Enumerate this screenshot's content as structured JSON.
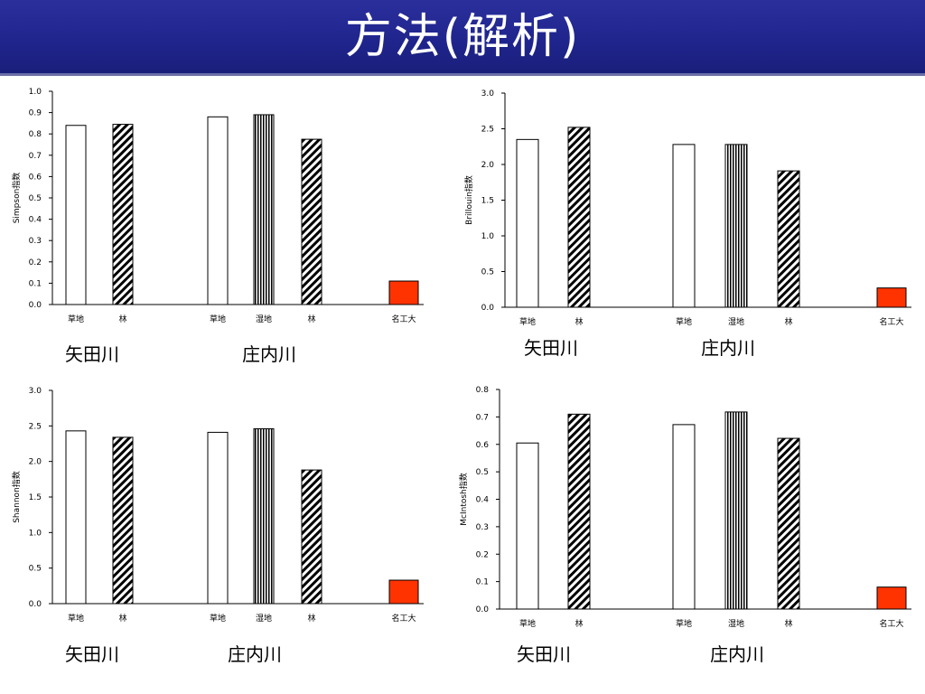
{
  "header": {
    "title": "方法(解析)"
  },
  "colors": {
    "title_bar": "#1f248c",
    "highlight_bar": "#ff3300",
    "bar_outline": "#000000"
  },
  "chart_data": [
    {
      "type": "bar",
      "ylabel": "Simpson指数",
      "ylim": [
        0,
        1.0
      ],
      "yticks": [
        "0.0",
        "0.1",
        "0.2",
        "0.3",
        "0.4",
        "0.5",
        "0.6",
        "0.7",
        "0.8",
        "0.9",
        "1.0"
      ],
      "categories": [
        "草地",
        "林",
        "草地",
        "湿地",
        "林",
        "名工大"
      ],
      "values": [
        0.84,
        0.845,
        0.88,
        0.89,
        0.775,
        0.11
      ],
      "patterns": [
        "plain",
        "hatch",
        "plain",
        "vertical",
        "hatch",
        "red"
      ],
      "group_labels": [
        "矢田川",
        "庄内川"
      ]
    },
    {
      "type": "bar",
      "ylabel": "Brillouin指数",
      "ylim": [
        0,
        3.0
      ],
      "yticks": [
        "0.0",
        "0.5",
        "1.0",
        "1.5",
        "2.0",
        "2.5",
        "3.0"
      ],
      "categories": [
        "草地",
        "林",
        "草地",
        "湿地",
        "林",
        "名工大"
      ],
      "values": [
        2.35,
        2.52,
        2.28,
        2.28,
        1.91,
        0.27
      ],
      "patterns": [
        "plain",
        "hatch",
        "plain",
        "vertical",
        "hatch",
        "red"
      ],
      "group_labels": [
        "矢田川",
        "庄内川"
      ]
    },
    {
      "type": "bar",
      "ylabel": "Shannon指数",
      "ylim": [
        0,
        3.0
      ],
      "yticks": [
        "0.0",
        "0.5",
        "1.0",
        "1.5",
        "2.0",
        "2.5",
        "3.0"
      ],
      "categories": [
        "草地",
        "林",
        "草地",
        "湿地",
        "林",
        "名工大"
      ],
      "values": [
        2.43,
        2.34,
        2.41,
        2.46,
        1.88,
        0.33
      ],
      "patterns": [
        "plain",
        "hatch",
        "plain",
        "vertical",
        "hatch",
        "red"
      ],
      "group_labels": [
        "矢田川",
        "庄内川"
      ]
    },
    {
      "type": "bar",
      "ylabel": "McIntosh指数",
      "ylim": [
        0,
        0.8
      ],
      "yticks": [
        "0.0",
        "0.1",
        "0.2",
        "0.3",
        "0.4",
        "0.5",
        "0.6",
        "0.7",
        "0.8"
      ],
      "categories": [
        "草地",
        "林",
        "草地",
        "湿地",
        "林",
        "名工大"
      ],
      "values": [
        0.605,
        0.71,
        0.672,
        0.718,
        0.622,
        0.08
      ],
      "patterns": [
        "plain",
        "hatch",
        "plain",
        "vertical",
        "hatch",
        "red"
      ],
      "group_labels": [
        "矢田川",
        "庄内川"
      ]
    }
  ]
}
